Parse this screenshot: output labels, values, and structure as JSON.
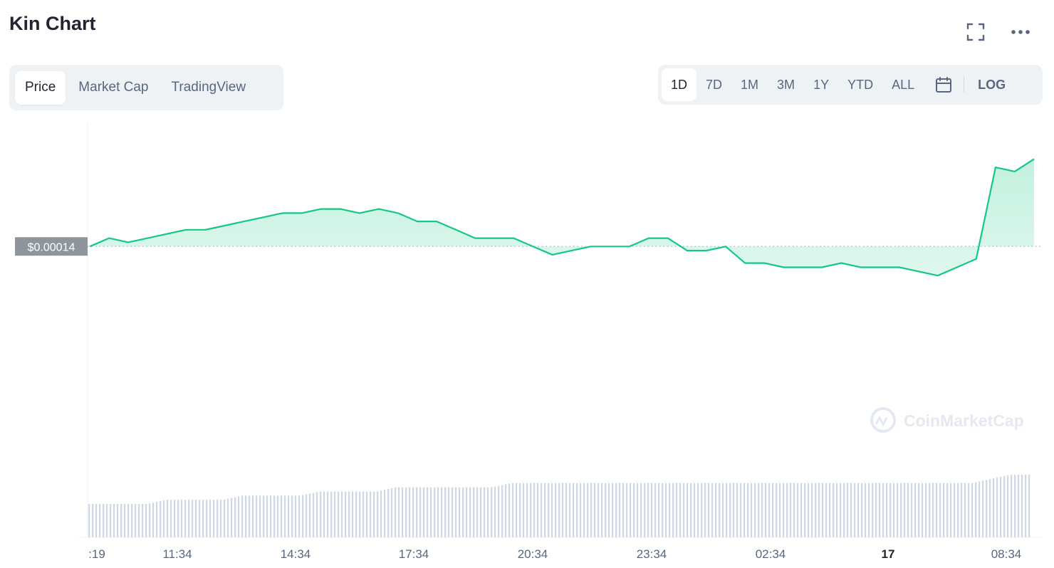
{
  "header": {
    "title": "Kin Chart"
  },
  "icons": {
    "fullscreen": "fullscreen-icon",
    "more": "more-icon",
    "calendar": "calendar-icon",
    "watermark_logo": "coinmarketcap-logo-icon"
  },
  "tabs": [
    {
      "label": "Price",
      "active": true
    },
    {
      "label": "Market Cap",
      "active": false
    },
    {
      "label": "TradingView",
      "active": false
    }
  ],
  "ranges": [
    {
      "label": "1D",
      "active": true
    },
    {
      "label": "7D",
      "active": false
    },
    {
      "label": "1M",
      "active": false
    },
    {
      "label": "3M",
      "active": false
    },
    {
      "label": "1Y",
      "active": false
    },
    {
      "label": "YTD",
      "active": false
    },
    {
      "label": "ALL",
      "active": false
    }
  ],
  "log_label": "LOG",
  "colors": {
    "up": "#16c784",
    "down": "#ea3943",
    "volume": "#cfd6e4",
    "baseline_tag": "#8f959c",
    "muted": "#58667e"
  },
  "chart_data": {
    "type": "area",
    "baseline_label": "$0.00014",
    "watermark": "CoinMarketCap",
    "x_tick_labels": [
      ":19",
      "11:34",
      "14:34",
      "17:34",
      "20:34",
      "23:34",
      "02:34",
      "17",
      "08:34"
    ],
    "bold_tick": "17",
    "ylim": [
      0.0001345,
      0.0001425
    ],
    "baseline": 0.00014,
    "x": [
      "08:19",
      "08:49",
      "09:19",
      "09:49",
      "10:19",
      "10:49",
      "11:19",
      "11:49",
      "12:19",
      "12:49",
      "13:19",
      "13:49",
      "14:19",
      "14:49",
      "15:19",
      "15:49",
      "16:19",
      "16:49",
      "17:19",
      "17:49",
      "18:19",
      "18:49",
      "19:19",
      "19:49",
      "20:19",
      "20:49",
      "21:19",
      "21:49",
      "22:19",
      "22:49",
      "23:19",
      "23:49",
      "00:19",
      "00:49",
      "01:19",
      "01:49",
      "02:19",
      "02:49",
      "03:19",
      "03:49",
      "04:19",
      "04:49",
      "05:19",
      "05:49",
      "06:19",
      "06:49",
      "07:19",
      "07:49",
      "08:19",
      "08:49"
    ],
    "series": [
      {
        "values": [
          0.00014,
          0.0001402,
          0.0001401,
          0.0001402,
          0.0001403,
          0.0001404,
          0.0001404,
          0.0001405,
          0.0001406,
          0.0001407,
          0.0001408,
          0.0001408,
          0.0001409,
          0.0001409,
          0.0001408,
          0.0001409,
          0.0001408,
          0.0001406,
          0.0001406,
          0.0001404,
          0.0001402,
          0.0001402,
          0.0001402,
          0.00014,
          0.0001398,
          0.0001399,
          0.00014,
          0.00014,
          0.00014,
          0.0001402,
          0.0001402,
          0.0001399,
          0.0001399,
          0.00014,
          0.0001396,
          0.0001396,
          0.0001395,
          0.0001395,
          0.0001395,
          0.0001396,
          0.0001395,
          0.0001395,
          0.0001395,
          0.0001394,
          0.0001393,
          0.0001395,
          0.0001397,
          0.0001419,
          0.0001418,
          0.0001421
        ]
      }
    ],
    "volume": [
      8,
      8,
      8,
      8,
      9,
      9,
      9,
      9,
      10,
      10,
      10,
      10,
      11,
      11,
      11,
      11,
      12,
      12,
      12,
      12,
      12,
      12,
      13,
      13,
      13,
      13,
      13,
      13,
      13,
      13,
      13,
      13,
      13,
      13,
      13,
      13,
      13,
      13,
      13,
      13,
      13,
      13,
      13,
      13,
      13,
      13,
      13,
      14,
      15,
      15
    ]
  }
}
